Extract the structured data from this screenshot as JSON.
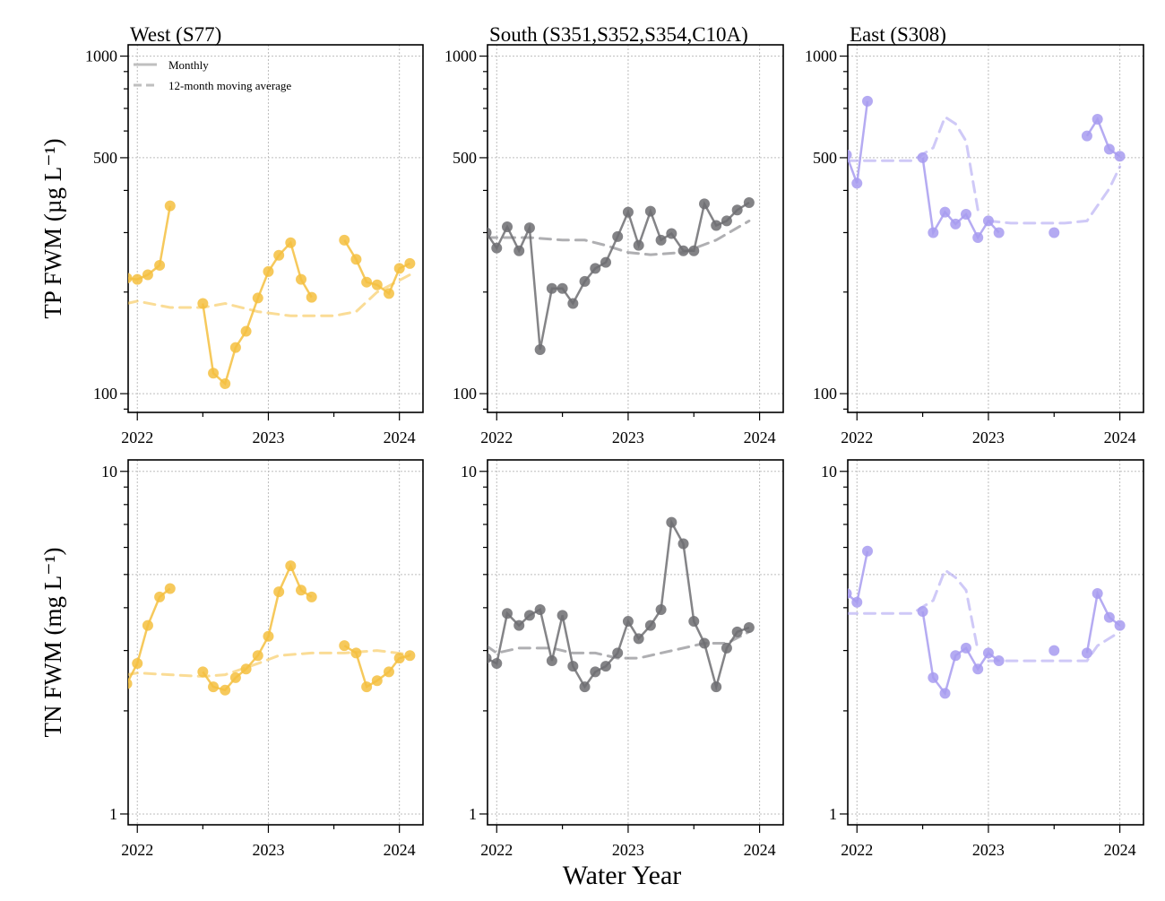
{
  "figure": {
    "xlabel": "Water Year",
    "legend": {
      "monthly": "Monthly",
      "moving_avg": "12-month moving average",
      "placement": "top-left of first panel"
    }
  },
  "chart_data": [
    {
      "type": "line",
      "row": 0,
      "col": 0,
      "title": "West (S77)",
      "ylabel": "TP FWM (µg L⁻¹)",
      "yscale": "log",
      "ylim": [
        88,
        1080
      ],
      "yticks": [
        100,
        500,
        1000
      ],
      "xlim": [
        2021.93,
        2024.18
      ],
      "xticks": [
        2022,
        2023,
        2024
      ],
      "grid": true,
      "color": "#f5c040",
      "monthly": [
        [
          [
            2021.92,
            220
          ],
          [
            2022.0,
            218
          ],
          [
            2022.08,
            225
          ],
          [
            2022.17,
            240
          ],
          [
            2022.25,
            360
          ]
        ],
        [
          [
            2022.5,
            185
          ],
          [
            2022.58,
            115
          ],
          [
            2022.67,
            107
          ],
          [
            2022.75,
            137
          ],
          [
            2022.83,
            153
          ],
          [
            2022.92,
            192
          ],
          [
            2023.0,
            230
          ],
          [
            2023.08,
            257
          ],
          [
            2023.17,
            280
          ],
          [
            2023.25,
            218
          ],
          [
            2023.33,
            193
          ]
        ],
        [
          [
            2023.58,
            285
          ],
          [
            2023.67,
            250
          ],
          [
            2023.75,
            214
          ],
          [
            2023.83,
            210
          ],
          [
            2023.92,
            198
          ],
          [
            2024.0,
            235
          ],
          [
            2024.08,
            243
          ]
        ]
      ],
      "moving_avg": [
        [
          [
            2021.92,
            185
          ],
          [
            2022.0,
            188
          ],
          [
            2022.25,
            180
          ],
          [
            2022.5,
            180
          ],
          [
            2022.67,
            185
          ],
          [
            2022.92,
            175
          ],
          [
            2023.17,
            170
          ],
          [
            2023.5,
            170
          ],
          [
            2023.67,
            175
          ],
          [
            2023.83,
            200
          ],
          [
            2024.08,
            225
          ]
        ]
      ]
    },
    {
      "type": "line",
      "row": 0,
      "col": 1,
      "title": "South (S351,S352,S354,C10A)",
      "yscale": "log",
      "ylim": [
        88,
        1080
      ],
      "yticks": [
        100,
        500,
        1000
      ],
      "xlim": [
        2021.93,
        2024.18
      ],
      "xticks": [
        2022,
        2023,
        2024
      ],
      "grid": true,
      "color": "#6e6e72",
      "monthly": [
        [
          [
            2021.92,
            300
          ],
          [
            2022.0,
            270
          ],
          [
            2022.08,
            312
          ],
          [
            2022.17,
            265
          ],
          [
            2022.25,
            310
          ],
          [
            2022.33,
            135
          ],
          [
            2022.42,
            205
          ],
          [
            2022.5,
            205
          ],
          [
            2022.58,
            185
          ],
          [
            2022.67,
            215
          ],
          [
            2022.75,
            235
          ],
          [
            2022.83,
            245
          ],
          [
            2022.92,
            292
          ],
          [
            2023.0,
            345
          ],
          [
            2023.08,
            275
          ],
          [
            2023.17,
            347
          ],
          [
            2023.25,
            285
          ],
          [
            2023.33,
            298
          ],
          [
            2023.42,
            265
          ],
          [
            2023.5,
            265
          ],
          [
            2023.58,
            365
          ],
          [
            2023.67,
            315
          ],
          [
            2023.75,
            325
          ],
          [
            2023.83,
            350
          ],
          [
            2023.92,
            368
          ]
        ]
      ],
      "moving_avg": [
        [
          [
            2021.92,
            290
          ],
          [
            2022.08,
            290
          ],
          [
            2022.25,
            290
          ],
          [
            2022.5,
            285
          ],
          [
            2022.67,
            285
          ],
          [
            2022.83,
            275
          ],
          [
            2023.0,
            262
          ],
          [
            2023.17,
            258
          ],
          [
            2023.42,
            262
          ],
          [
            2023.67,
            285
          ],
          [
            2023.92,
            325
          ]
        ]
      ]
    },
    {
      "type": "line",
      "row": 0,
      "col": 2,
      "title": "East (S308)",
      "yscale": "log",
      "ylim": [
        88,
        1080
      ],
      "yticks": [
        100,
        500,
        1000
      ],
      "xlim": [
        2021.93,
        2024.18
      ],
      "xticks": [
        2022,
        2023,
        2024
      ],
      "grid": true,
      "color": "#a89cf0",
      "monthly": [
        [
          [
            2021.92,
            510
          ],
          [
            2022.0,
            420
          ],
          [
            2022.08,
            735
          ]
        ],
        [
          [
            2022.5,
            500
          ],
          [
            2022.58,
            300
          ],
          [
            2022.67,
            345
          ],
          [
            2022.75,
            318
          ],
          [
            2022.83,
            340
          ],
          [
            2022.92,
            290
          ],
          [
            2023.0,
            325
          ],
          [
            2023.08,
            300
          ]
        ],
        [
          [
            2023.5,
            300
          ]
        ],
        [
          [
            2023.75,
            580
          ],
          [
            2023.83,
            650
          ],
          [
            2023.92,
            530
          ],
          [
            2024.0,
            505
          ]
        ]
      ],
      "moving_avg": [
        [
          [
            2021.92,
            490
          ],
          [
            2022.17,
            490
          ],
          [
            2022.42,
            490
          ],
          [
            2022.58,
            535
          ],
          [
            2022.67,
            660
          ],
          [
            2022.75,
            630
          ],
          [
            2022.83,
            560
          ],
          [
            2022.92,
            350
          ]
        ],
        [
          [
            2023.0,
            325
          ],
          [
            2023.17,
            320
          ],
          [
            2023.42,
            320
          ],
          [
            2023.58,
            320
          ],
          [
            2023.75,
            325
          ],
          [
            2023.92,
            405
          ],
          [
            2024.0,
            470
          ]
        ]
      ]
    },
    {
      "type": "line",
      "row": 1,
      "col": 0,
      "ylabel": "TN FWM (mg L⁻¹)",
      "yscale": "log",
      "ylim": [
        0.93,
        10.8
      ],
      "yticks": [
        1,
        10
      ],
      "xlim": [
        2021.93,
        2024.18
      ],
      "xticks": [
        2022,
        2023,
        2024
      ],
      "grid": true,
      "color": "#f5c040",
      "monthly": [
        [
          [
            2021.92,
            2.4
          ],
          [
            2022.0,
            2.75
          ],
          [
            2022.08,
            3.55
          ],
          [
            2022.17,
            4.3
          ],
          [
            2022.25,
            4.55
          ]
        ],
        [
          [
            2022.5,
            2.6
          ],
          [
            2022.58,
            2.35
          ],
          [
            2022.67,
            2.3
          ],
          [
            2022.75,
            2.5
          ],
          [
            2022.83,
            2.65
          ],
          [
            2022.92,
            2.9
          ],
          [
            2023.0,
            3.3
          ],
          [
            2023.08,
            4.45
          ],
          [
            2023.17,
            5.3
          ],
          [
            2023.25,
            4.5
          ],
          [
            2023.33,
            4.3
          ]
        ],
        [
          [
            2023.58,
            3.1
          ],
          [
            2023.67,
            2.95
          ],
          [
            2023.75,
            2.35
          ],
          [
            2023.83,
            2.45
          ],
          [
            2023.92,
            2.6
          ],
          [
            2024.0,
            2.85
          ],
          [
            2024.08,
            2.9
          ]
        ]
      ],
      "moving_avg": [
        [
          [
            2021.92,
            2.55
          ],
          [
            2022.0,
            2.58
          ],
          [
            2022.25,
            2.55
          ],
          [
            2022.5,
            2.52
          ],
          [
            2022.67,
            2.55
          ],
          [
            2022.92,
            2.75
          ],
          [
            2023.08,
            2.9
          ],
          [
            2023.33,
            2.95
          ],
          [
            2023.58,
            2.95
          ],
          [
            2023.83,
            3.0
          ],
          [
            2024.08,
            2.92
          ]
        ]
      ]
    },
    {
      "type": "line",
      "row": 1,
      "col": 1,
      "yscale": "log",
      "ylim": [
        0.93,
        10.8
      ],
      "yticks": [
        1,
        10
      ],
      "xlim": [
        2021.93,
        2024.18
      ],
      "xticks": [
        2022,
        2023,
        2024
      ],
      "grid": true,
      "color": "#6e6e72",
      "monthly": [
        [
          [
            2021.92,
            2.85
          ],
          [
            2022.0,
            2.75
          ],
          [
            2022.08,
            3.85
          ],
          [
            2022.17,
            3.55
          ],
          [
            2022.25,
            3.8
          ],
          [
            2022.33,
            3.95
          ],
          [
            2022.42,
            2.8
          ],
          [
            2022.5,
            3.8
          ],
          [
            2022.58,
            2.7
          ],
          [
            2022.67,
            2.35
          ],
          [
            2022.75,
            2.6
          ],
          [
            2022.83,
            2.7
          ],
          [
            2022.92,
            2.95
          ],
          [
            2023.0,
            3.65
          ],
          [
            2023.08,
            3.25
          ],
          [
            2023.17,
            3.55
          ],
          [
            2023.25,
            3.95
          ],
          [
            2023.33,
            7.1
          ],
          [
            2023.42,
            6.15
          ],
          [
            2023.5,
            3.65
          ],
          [
            2023.58,
            3.15
          ],
          [
            2023.67,
            2.35
          ],
          [
            2023.75,
            3.05
          ],
          [
            2023.83,
            3.4
          ],
          [
            2023.92,
            3.5
          ]
        ]
      ],
      "moving_avg": [
        [
          [
            2021.92,
            3.1
          ],
          [
            2022.0,
            2.95
          ],
          [
            2022.17,
            3.05
          ],
          [
            2022.42,
            3.05
          ],
          [
            2022.58,
            2.95
          ],
          [
            2022.75,
            2.95
          ],
          [
            2022.92,
            2.85
          ],
          [
            2023.08,
            2.85
          ],
          [
            2023.25,
            2.95
          ],
          [
            2023.42,
            3.05
          ],
          [
            2023.58,
            3.15
          ],
          [
            2023.75,
            3.15
          ],
          [
            2023.92,
            3.4
          ]
        ]
      ]
    },
    {
      "type": "line",
      "row": 1,
      "col": 2,
      "yscale": "log",
      "ylim": [
        0.93,
        10.8
      ],
      "yticks": [
        1,
        10
      ],
      "xlim": [
        2021.93,
        2024.18
      ],
      "xticks": [
        2022,
        2023,
        2024
      ],
      "grid": true,
      "color": "#a89cf0",
      "monthly": [
        [
          [
            2021.92,
            4.4
          ],
          [
            2022.0,
            4.15
          ],
          [
            2022.08,
            5.85
          ]
        ],
        [
          [
            2022.5,
            3.9
          ],
          [
            2022.58,
            2.5
          ],
          [
            2022.67,
            2.25
          ],
          [
            2022.75,
            2.9
          ],
          [
            2022.83,
            3.05
          ],
          [
            2022.92,
            2.65
          ],
          [
            2023.0,
            2.95
          ],
          [
            2023.08,
            2.8
          ]
        ],
        [
          [
            2023.5,
            3.0
          ]
        ],
        [
          [
            2023.75,
            2.95
          ],
          [
            2023.83,
            4.4
          ],
          [
            2023.92,
            3.75
          ],
          [
            2024.0,
            3.55
          ]
        ]
      ],
      "moving_avg": [
        [
          [
            2021.92,
            3.85
          ],
          [
            2022.42,
            3.85
          ],
          [
            2022.58,
            4.2
          ],
          [
            2022.67,
            5.15
          ],
          [
            2022.75,
            4.9
          ],
          [
            2022.83,
            4.5
          ],
          [
            2022.92,
            3.0
          ]
        ],
        [
          [
            2023.0,
            2.8
          ],
          [
            2023.25,
            2.8
          ],
          [
            2023.58,
            2.8
          ],
          [
            2023.75,
            2.8
          ],
          [
            2023.83,
            3.1
          ],
          [
            2024.0,
            3.4
          ]
        ]
      ]
    }
  ]
}
